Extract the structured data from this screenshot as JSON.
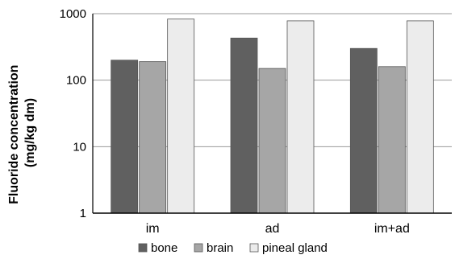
{
  "chart_data": {
    "type": "bar",
    "y_scale": "log",
    "ylim": [
      1,
      1000
    ],
    "yticks": [
      "1",
      "10",
      "100",
      "1000"
    ],
    "ylabel_line1": "Fluoride concentration",
    "ylabel_line2": "(mg/kg dm)",
    "xlabel": "",
    "title": "",
    "categories": [
      "im",
      "ad",
      "im+ad"
    ],
    "series": [
      {
        "name": "bone",
        "values": [
          200,
          430,
          300
        ],
        "color": "#606060"
      },
      {
        "name": "brain",
        "values": [
          190,
          150,
          160
        ],
        "color": "#a6a6a6"
      },
      {
        "name": "pineal gland",
        "values": [
          830,
          780,
          780
        ],
        "color": "#ececec"
      }
    ],
    "grid": true,
    "legend_position": "bottom"
  }
}
